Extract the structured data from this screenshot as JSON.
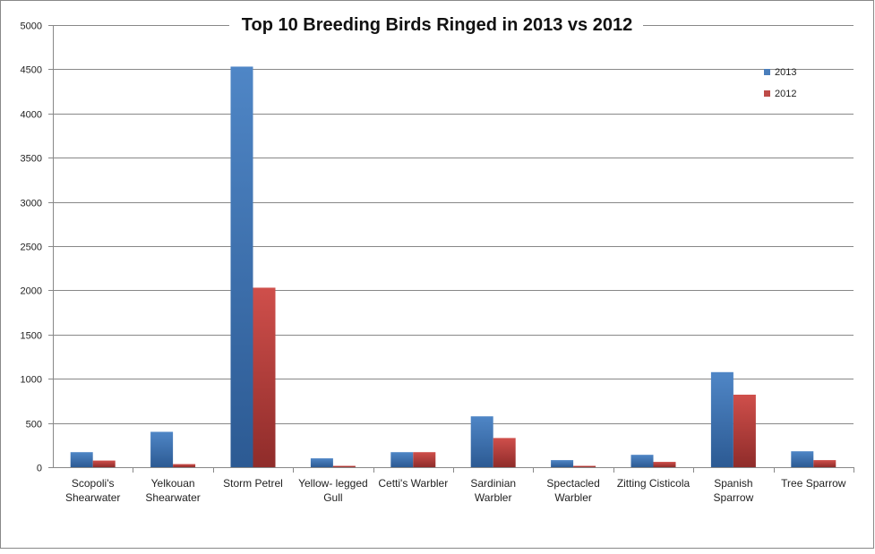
{
  "chart_data": {
    "type": "bar",
    "title": "Top 10 Breeding Birds Ringed in 2013 vs 2012",
    "categories": [
      [
        "Scopoli's",
        "Shearwater"
      ],
      [
        "Yelkouan",
        "Shearwater"
      ],
      [
        "Storm Petrel"
      ],
      [
        "Yellow- legged",
        "Gull"
      ],
      [
        "Cetti's Warbler"
      ],
      [
        "Sardinian",
        "Warbler"
      ],
      [
        "Spectacled",
        "Warbler"
      ],
      [
        "Zitting Cisticola"
      ],
      [
        "Spanish",
        "Sparrow"
      ],
      [
        "Tree Sparrow"
      ]
    ],
    "series": [
      {
        "name": "2013",
        "color": "#4a7ebb",
        "values": [
          170,
          400,
          4530,
          100,
          170,
          575,
          80,
          140,
          1075,
          180
        ]
      },
      {
        "name": "2012",
        "color": "#be4b48",
        "values": [
          75,
          35,
          2030,
          15,
          170,
          330,
          15,
          60,
          820,
          80
        ]
      }
    ],
    "ylim": [
      0,
      5000
    ],
    "yticks": [
      "0",
      "500",
      "1000",
      "1500",
      "2000",
      "2500",
      "3000",
      "3500",
      "4000",
      "4500",
      "5000"
    ],
    "grid": true,
    "legend": "top-right"
  }
}
